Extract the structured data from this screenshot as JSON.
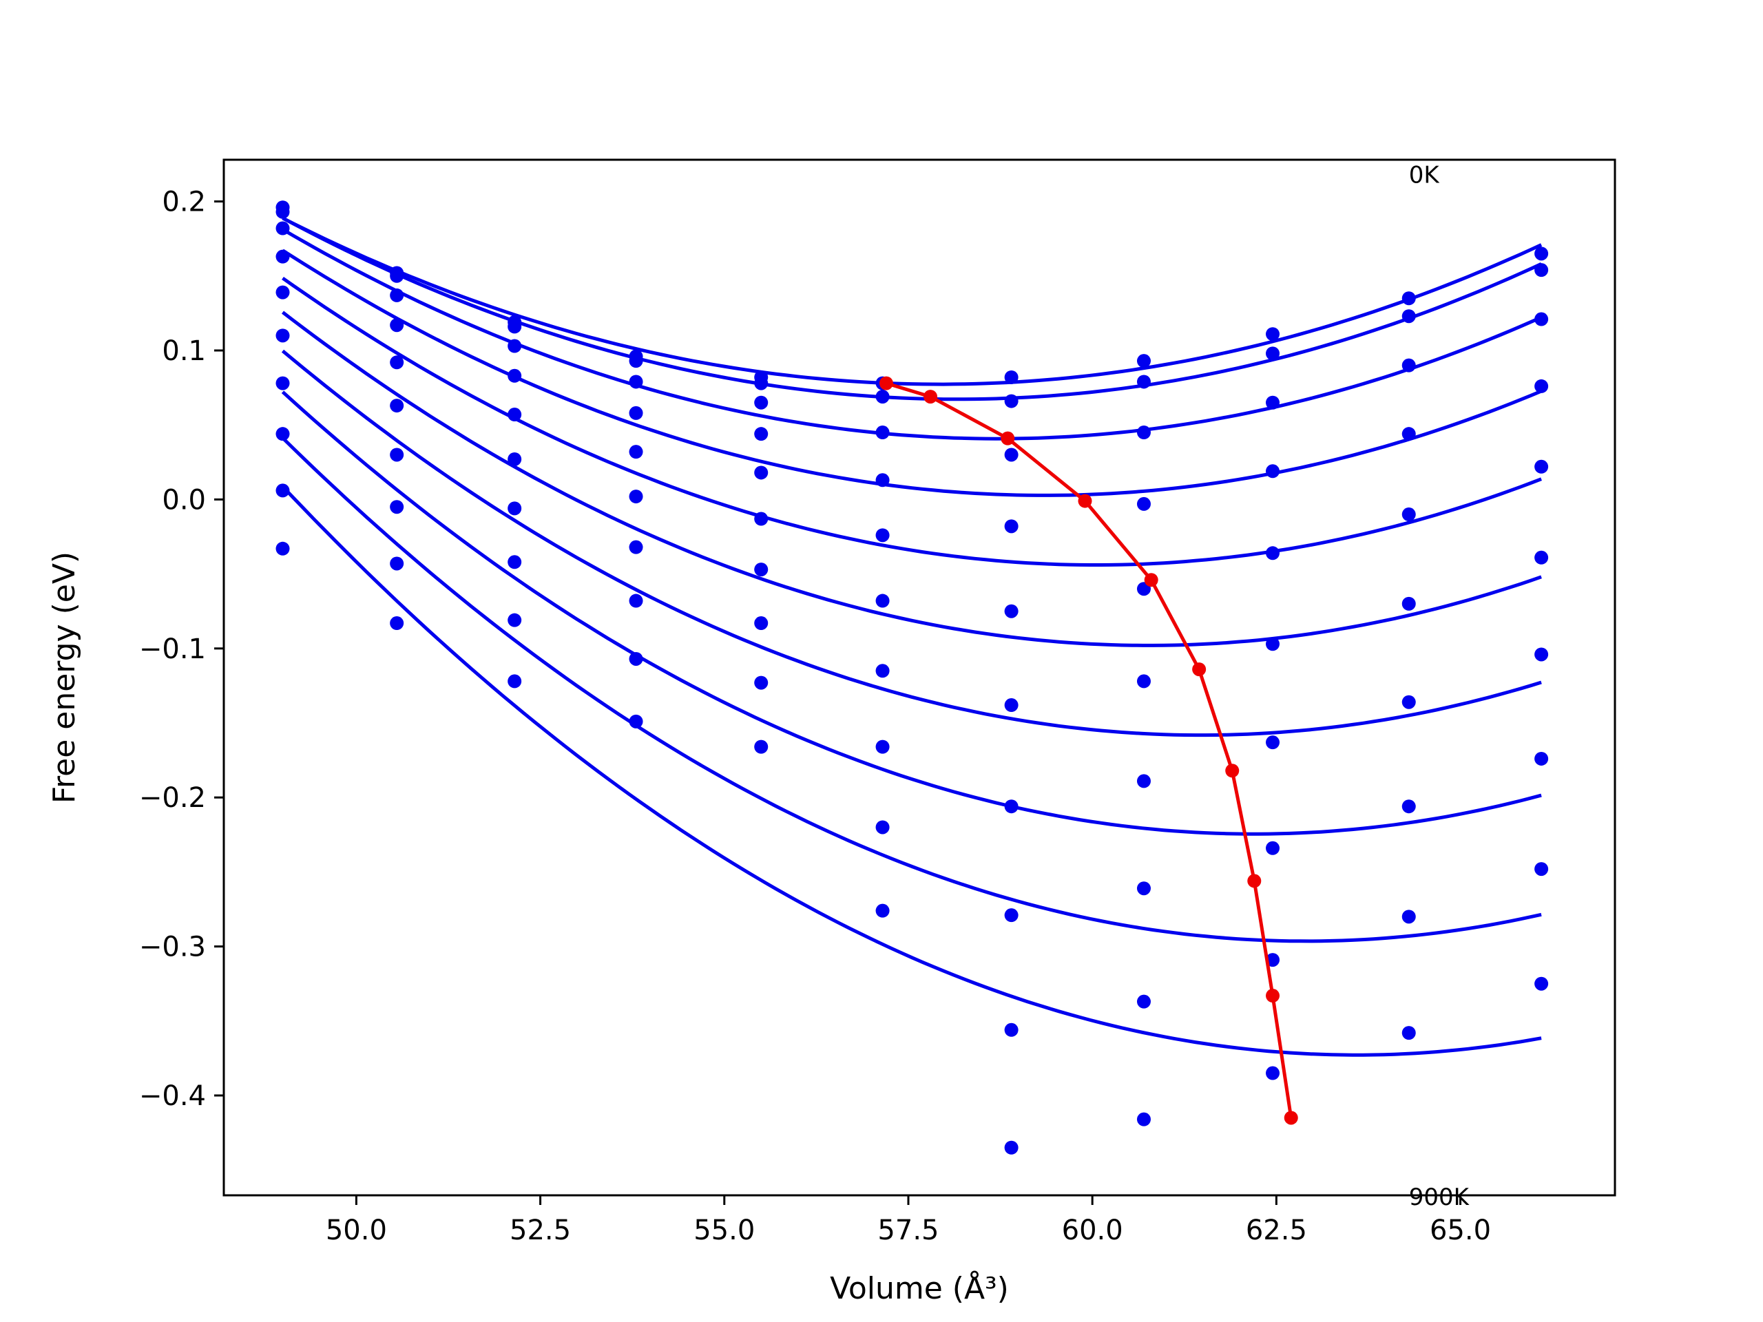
{
  "chart_data": {
    "type": "scatter",
    "xlabel": "Volume (Å³)",
    "ylabel": "Free energy (eV)",
    "xlim": [
      48.2,
      67.1
    ],
    "ylim": [
      -0.467,
      0.228
    ],
    "xticks": [
      50.0,
      52.5,
      55.0,
      57.5,
      60.0,
      62.5,
      65.0
    ],
    "xtick_labels": [
      "50.0",
      "52.5",
      "55.0",
      "57.5",
      "60.0",
      "62.5",
      "65.0"
    ],
    "yticks": [
      0.2,
      0.1,
      0.0,
      -0.1,
      -0.2,
      -0.3,
      -0.4
    ],
    "ytick_labels": [
      "0.2",
      "0.1",
      "0.0",
      "−0.1",
      "−0.2",
      "−0.3",
      "−0.4"
    ],
    "annotations": [
      {
        "text": "0K",
        "x": 64.3,
        "y": 0.218
      },
      {
        "text": "900K",
        "x": 64.3,
        "y": -0.468
      }
    ],
    "grid": false,
    "legend": "none",
    "colors": {
      "points": "#0000ee",
      "fit": "#0000ee",
      "minimum": "#ee0000"
    },
    "volumes": [
      49.0,
      50.55,
      52.15,
      53.8,
      55.5,
      57.15,
      58.9,
      60.7,
      62.45,
      64.3,
      66.1
    ],
    "series": [
      {
        "values": [
          0.196,
          0.152,
          0.119,
          0.096,
          0.082,
          0.078,
          0.082,
          0.093,
          0.111,
          0.135,
          0.165
        ]
      },
      {
        "values": [
          0.193,
          0.15,
          0.116,
          0.093,
          0.078,
          0.069,
          0.066,
          0.079,
          0.098,
          0.123,
          0.154
        ]
      },
      {
        "values": [
          0.182,
          0.137,
          0.103,
          0.079,
          0.065,
          0.045,
          0.03,
          0.045,
          0.065,
          0.09,
          0.121
        ]
      },
      {
        "values": [
          0.163,
          0.117,
          0.083,
          0.058,
          0.044,
          0.013,
          -0.018,
          -0.003,
          0.019,
          0.044,
          0.076
        ]
      },
      {
        "values": [
          0.139,
          0.092,
          0.057,
          0.032,
          0.018,
          -0.024,
          -0.075,
          -0.06,
          -0.036,
          -0.01,
          0.022
        ]
      },
      {
        "values": [
          0.11,
          0.063,
          0.027,
          0.002,
          -0.013,
          -0.068,
          -0.138,
          -0.122,
          -0.097,
          -0.07,
          -0.039
        ]
      },
      {
        "values": [
          0.078,
          0.03,
          -0.006,
          -0.032,
          -0.047,
          -0.115,
          -0.206,
          -0.189,
          -0.163,
          -0.136,
          -0.104
        ]
      },
      {
        "values": [
          0.044,
          -0.005,
          -0.042,
          -0.068,
          -0.083,
          -0.166,
          -0.279,
          -0.261,
          -0.234,
          -0.206,
          -0.174
        ]
      },
      {
        "values": [
          0.006,
          -0.043,
          -0.081,
          -0.107,
          -0.123,
          -0.22,
          -0.356,
          -0.337,
          -0.309,
          -0.28,
          -0.248
        ]
      },
      {
        "values": [
          -0.033,
          -0.083,
          -0.122,
          -0.149,
          -0.166,
          -0.276,
          -0.435,
          -0.416,
          -0.385,
          -0.358,
          -0.325
        ]
      }
    ],
    "fit_minima": [
      {
        "volume": 57.2,
        "energy": 0.078
      },
      {
        "volume": 57.8,
        "energy": 0.069
      },
      {
        "volume": 58.85,
        "energy": 0.041
      },
      {
        "volume": 59.9,
        "energy": -0.001
      },
      {
        "volume": 60.8,
        "energy": -0.054
      },
      {
        "volume": 61.45,
        "energy": -0.114
      },
      {
        "volume": 61.9,
        "energy": -0.182
      },
      {
        "volume": 62.2,
        "energy": -0.256
      },
      {
        "volume": 62.45,
        "energy": -0.333
      },
      {
        "volume": 62.7,
        "energy": -0.415
      }
    ]
  }
}
